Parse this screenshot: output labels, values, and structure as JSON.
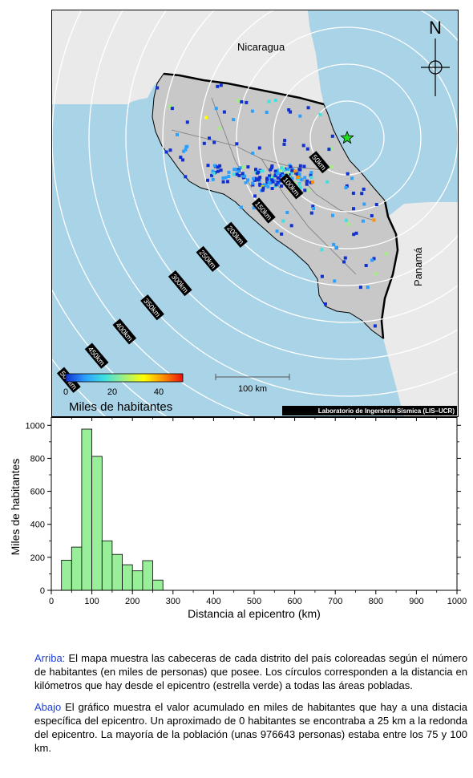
{
  "map": {
    "labels": {
      "nicaragua": "Nicaragua",
      "panama": "Panamá",
      "north": "N",
      "credit": "Laboratorio de Ingeniería Sísmica (LIS–UCR)",
      "scalebar": "100 km"
    },
    "colors": {
      "sea": "#a9d3e6",
      "land_cr": "#c8c8c8",
      "land_other": "#eaeaea",
      "epicenter": "#22dd22"
    },
    "rings": [
      {
        "km": 50,
        "label": "50km"
      },
      {
        "km": 100,
        "label": "100km"
      },
      {
        "km": 150,
        "label": "150km"
      },
      {
        "km": 200,
        "label": "200km"
      },
      {
        "km": 250,
        "label": "250km"
      },
      {
        "km": 300,
        "label": "300km"
      },
      {
        "km": 350,
        "label": "350km"
      },
      {
        "km": 400,
        "label": "400km"
      },
      {
        "km": 450,
        "label": "450km"
      },
      {
        "km": 500,
        "label": "500km"
      }
    ],
    "colorbar": {
      "ticks": [
        "0",
        "20",
        "40"
      ],
      "label": "Miles de habitantes",
      "stops": [
        "#1030d0",
        "#2aa0ff",
        "#40e0e0",
        "#a0f080",
        "#ffff00",
        "#ff9000",
        "#e81010"
      ]
    }
  },
  "chart_data": {
    "type": "bar",
    "xlabel": "Distancia al epicentro (km)",
    "ylabel": "Miles de habitantes",
    "xlim": [
      0,
      1000
    ],
    "ylim": [
      0,
      1050
    ],
    "xticks": [
      0,
      100,
      200,
      300,
      400,
      500,
      600,
      700,
      800,
      900,
      1000
    ],
    "yticks": [
      0,
      200,
      400,
      600,
      800,
      1000
    ],
    "bin_width": 25,
    "bins": [
      {
        "x0": 25,
        "value": 183
      },
      {
        "x0": 50,
        "value": 262
      },
      {
        "x0": 75,
        "value": 977
      },
      {
        "x0": 100,
        "value": 812
      },
      {
        "x0": 125,
        "value": 300
      },
      {
        "x0": 150,
        "value": 218
      },
      {
        "x0": 175,
        "value": 155
      },
      {
        "x0": 200,
        "value": 118
      },
      {
        "x0": 225,
        "value": 180
      },
      {
        "x0": 250,
        "value": 62
      }
    ],
    "bar_color": "#99ee99"
  },
  "captions": [
    {
      "head": "Arriba:",
      "text": " El mapa muestra las cabeceras de cada distrito del país coloreadas según el número de habitantes (en miles de personas) que posee.  Los círculos corresponden a la distancia en kilómetros que hay desde el epicentro (estrella verde) a todas las áreas pobladas."
    },
    {
      "head": "Abajo",
      "text": " El gráfico muestra el valor acumulado en miles de habitantes que hay a una distacia específica del epicentro.  Un aproximado de 0 habitantes se encontraba a 25 km a la redonda del epicentro.  La mayoría de la población (unas 976643 personas) estaba entre los 75 y 100 km."
    }
  ]
}
